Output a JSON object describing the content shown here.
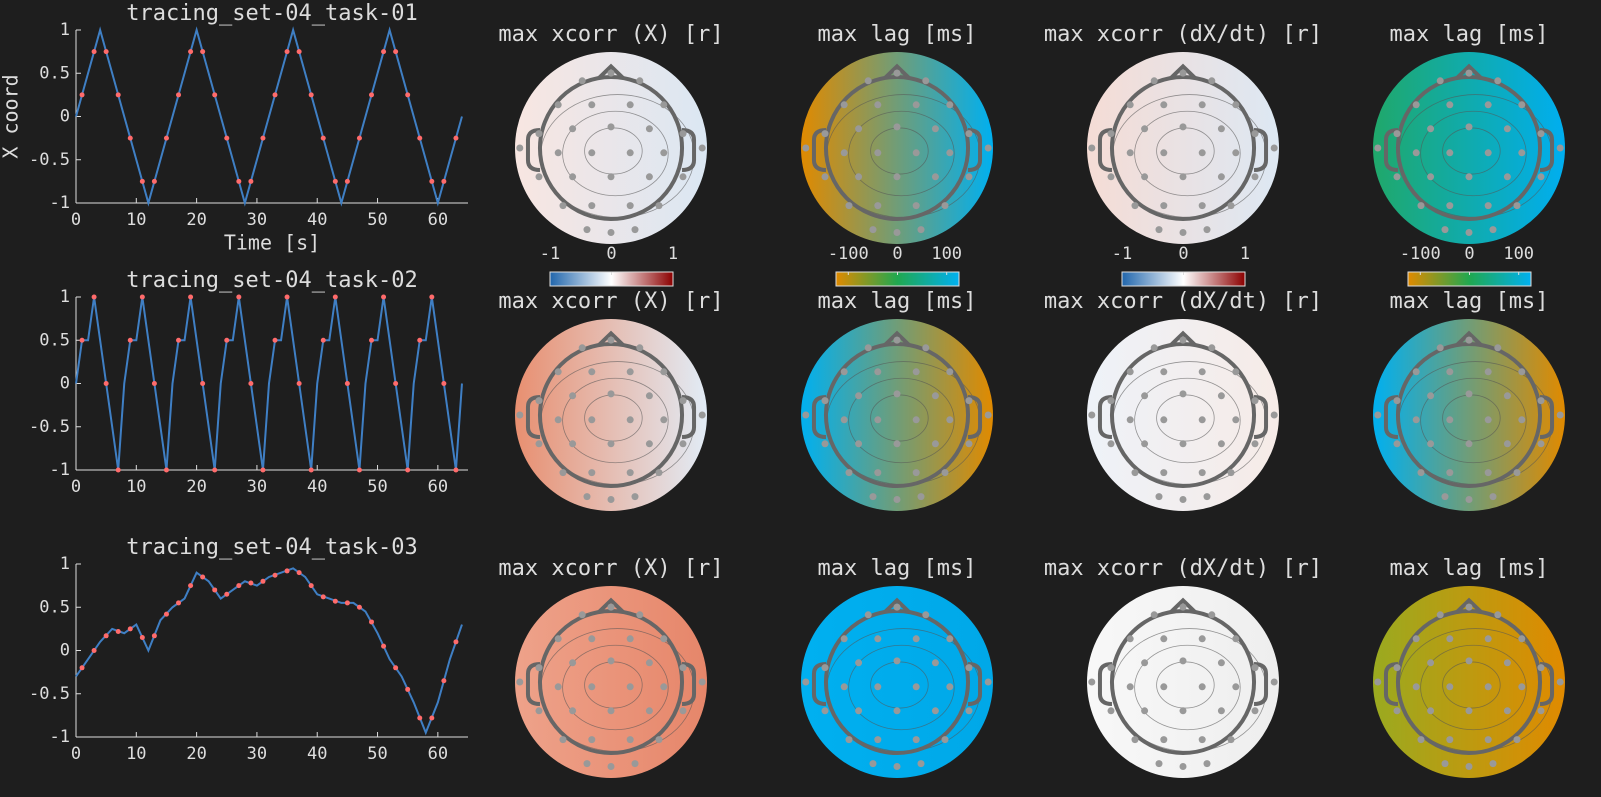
{
  "chart_data": [
    {
      "type": "line",
      "title": "tracing_set-04_task-01",
      "xlabel": "Time [s]",
      "ylabel": "X coord",
      "xlim": [
        0,
        65
      ],
      "xticks": [
        0,
        10,
        20,
        30,
        40,
        50,
        60
      ],
      "ylim": [
        -1,
        1
      ],
      "yticks": [
        -1,
        -0.5,
        0,
        0.5,
        1
      ],
      "series": [
        {
          "mode": "line",
          "color": "#3f7fc4",
          "x": [
            0,
            1,
            2,
            3,
            4,
            5,
            6,
            7,
            8,
            9,
            10,
            11,
            12,
            13,
            14,
            15,
            16,
            17,
            18,
            19,
            20,
            21,
            22,
            23,
            24,
            25,
            26,
            27,
            28,
            29,
            30,
            31,
            32,
            33,
            34,
            35,
            36,
            37,
            38,
            39,
            40,
            41,
            42,
            43,
            44,
            45,
            46,
            47,
            48,
            49,
            50,
            51,
            52,
            53,
            54,
            55,
            56,
            57,
            58,
            59,
            60,
            61,
            62,
            63,
            64
          ],
          "values": [
            0,
            0.25,
            0.5,
            0.75,
            1,
            0.75,
            0.5,
            0.25,
            0,
            -0.25,
            -0.5,
            -0.75,
            -1,
            -0.75,
            -0.5,
            -0.25,
            0,
            0.25,
            0.5,
            0.75,
            1,
            0.75,
            0.5,
            0.25,
            0,
            -0.25,
            -0.5,
            -0.75,
            -1,
            -0.75,
            -0.5,
            -0.25,
            0,
            0.25,
            0.5,
            0.75,
            1,
            0.75,
            0.5,
            0.25,
            0,
            -0.25,
            -0.5,
            -0.75,
            -1,
            -0.75,
            -0.5,
            -0.25,
            0,
            0.25,
            0.5,
            0.75,
            1,
            0.75,
            0.5,
            0.25,
            0,
            -0.25,
            -0.5,
            -0.75,
            -1,
            -0.75,
            -0.5,
            -0.25,
            0
          ]
        },
        {
          "mode": "markers",
          "color": "#ff6b6b",
          "x": [
            1,
            3,
            5,
            7,
            9,
            11,
            13,
            15,
            17,
            19,
            21,
            23,
            25,
            27,
            29,
            31,
            33,
            35,
            37,
            39,
            41,
            43,
            45,
            47,
            49,
            51,
            53,
            55,
            57,
            59,
            61,
            63
          ],
          "values": [
            0.25,
            0.75,
            0.75,
            0.25,
            -0.25,
            -0.75,
            -0.75,
            -0.25,
            0.25,
            0.75,
            0.75,
            0.25,
            -0.25,
            -0.75,
            -0.75,
            -0.25,
            0.25,
            0.75,
            0.75,
            0.25,
            -0.25,
            -0.75,
            -0.75,
            -0.25,
            0.25,
            0.75,
            0.75,
            0.25,
            -0.25,
            -0.75,
            -0.75,
            -0.25
          ]
        }
      ]
    },
    {
      "type": "line",
      "title": "tracing_set-04_task-02",
      "xlim": [
        0,
        65
      ],
      "xticks": [
        0,
        10,
        20,
        30,
        40,
        50,
        60
      ],
      "ylim": [
        -1,
        1
      ],
      "yticks": [
        -1,
        -0.5,
        0,
        0.5,
        1
      ],
      "series": [
        {
          "mode": "line",
          "color": "#3f7fc4",
          "x": [
            0,
            1,
            2,
            3,
            4,
            5,
            6,
            7,
            8,
            9,
            10,
            11,
            12,
            13,
            14,
            15,
            16,
            17,
            18,
            19,
            20,
            21,
            22,
            23,
            24,
            25,
            26,
            27,
            28,
            29,
            30,
            31,
            32,
            33,
            34,
            35,
            36,
            37,
            38,
            39,
            40,
            41,
            42,
            43,
            44,
            45,
            46,
            47,
            48,
            49,
            50,
            51,
            52,
            53,
            54,
            55,
            56,
            57,
            58,
            59,
            60,
            61,
            62,
            63,
            64
          ],
          "values": [
            0,
            0.5,
            0.5,
            1,
            0.5,
            0,
            -0.5,
            -1,
            0,
            0.5,
            0.5,
            1,
            0.5,
            0,
            -0.5,
            -1,
            0,
            0.5,
            0.5,
            1,
            0.5,
            0,
            -0.5,
            -1,
            0,
            0.5,
            0.5,
            1,
            0.5,
            0,
            -0.5,
            -1,
            0,
            0.5,
            0.5,
            1,
            0.5,
            0,
            -0.5,
            -1,
            0,
            0.5,
            0.5,
            1,
            0.5,
            0,
            -0.5,
            -1,
            0,
            0.5,
            0.5,
            1,
            0.5,
            0,
            -0.5,
            -1,
            0,
            0.5,
            0.5,
            1,
            0.5,
            0,
            -0.5,
            -1,
            0
          ]
        },
        {
          "mode": "markers",
          "color": "#ff6b6b",
          "x": [
            1,
            3,
            5,
            7,
            9,
            11,
            13,
            15,
            17,
            19,
            21,
            23,
            25,
            27,
            29,
            31,
            33,
            35,
            37,
            39,
            41,
            43,
            45,
            47,
            49,
            51,
            53,
            55,
            57,
            59,
            61,
            63
          ],
          "values": [
            0.5,
            1,
            0,
            -1,
            0.5,
            1,
            0,
            -1,
            0.5,
            1,
            0,
            -1,
            0.5,
            1,
            0,
            -1,
            0.5,
            1,
            0,
            -1,
            0.5,
            1,
            0,
            -1,
            0.5,
            1,
            0,
            -1,
            0.5,
            1,
            0,
            -1
          ]
        }
      ]
    },
    {
      "type": "line",
      "title": "tracing_set-04_task-03",
      "xlim": [
        0,
        65
      ],
      "xticks": [
        0,
        10,
        20,
        30,
        40,
        50,
        60
      ],
      "ylim": [
        -1,
        1
      ],
      "yticks": [
        -1,
        -0.5,
        0,
        0.5,
        1
      ],
      "series": [
        {
          "mode": "line",
          "color": "#3f7fc4",
          "x": [
            0,
            2,
            4,
            6,
            8,
            10,
            12,
            14,
            16,
            18,
            20,
            22,
            24,
            26,
            28,
            30,
            32,
            34,
            36,
            38,
            40,
            42,
            44,
            46,
            48,
            50,
            52,
            54,
            56,
            58,
            60,
            62,
            64
          ],
          "values": [
            -0.3,
            -0.1,
            0.1,
            0.25,
            0.2,
            0.3,
            0,
            0.35,
            0.5,
            0.6,
            0.9,
            0.8,
            0.6,
            0.7,
            0.8,
            0.75,
            0.85,
            0.9,
            0.95,
            0.85,
            0.65,
            0.6,
            0.55,
            0.55,
            0.45,
            0.2,
            -0.1,
            -0.3,
            -0.6,
            -0.95,
            -0.6,
            -0.1,
            0.3
          ]
        },
        {
          "mode": "markers",
          "color": "#ff6b6b",
          "x": [
            1,
            3,
            5,
            7,
            9,
            11,
            13,
            15,
            17,
            19,
            21,
            23,
            25,
            27,
            29,
            31,
            33,
            35,
            37,
            39,
            41,
            43,
            45,
            47,
            49,
            51,
            53,
            55,
            57,
            59,
            61,
            63
          ],
          "values": [
            -0.2,
            0,
            0.17,
            0.22,
            0.25,
            0.15,
            0.17,
            0.42,
            0.55,
            0.75,
            0.85,
            0.7,
            0.65,
            0.75,
            0.78,
            0.8,
            0.87,
            0.92,
            0.9,
            0.75,
            0.62,
            0.57,
            0.55,
            0.5,
            0.33,
            0.05,
            -0.2,
            -0.45,
            -0.78,
            -0.78,
            -0.35,
            0.1
          ]
        }
      ]
    },
    {
      "type": "topoplot",
      "title": "max xcorr (X) [r]",
      "colors": [
        "#f8e6e1",
        "#dbe7f3"
      ],
      "clim": [
        -1,
        1
      ],
      "cticks": [
        -1,
        0,
        1
      ],
      "cmap": [
        "#2166ac",
        "#ffffff",
        "#8b0000"
      ]
    },
    {
      "type": "topoplot",
      "title": "max lag [ms]",
      "colors": [
        "#e08a00",
        "#00b0f0"
      ],
      "clim": [
        -125,
        125
      ],
      "cticks": [
        -100,
        0,
        100
      ],
      "cmap": [
        "#e08a00",
        "#20a850",
        "#00b0f0"
      ]
    },
    {
      "type": "topoplot",
      "title": "max xcorr (dX/dt) [r]",
      "colors": [
        "#f5dcd5",
        "#dde8f3"
      ],
      "clim": [
        -1,
        1
      ],
      "cticks": [
        -1,
        0,
        1
      ],
      "cmap": [
        "#2166ac",
        "#ffffff",
        "#8b0000"
      ]
    },
    {
      "type": "topoplot",
      "title": "max lag [ms]",
      "colors": [
        "#20a86a",
        "#00aef0"
      ],
      "clim": [
        -125,
        125
      ],
      "cticks": [
        -100,
        0,
        100
      ],
      "cmap": [
        "#e08a00",
        "#20a850",
        "#00b0f0"
      ]
    },
    {
      "type": "topoplot",
      "title": "max xcorr (X) [r]",
      "colors": [
        "#e88f70",
        "#e2ecf6"
      ]
    },
    {
      "type": "topoplot",
      "title": "max lag [ms]",
      "colors": [
        "#00b0f0",
        "#e08a00"
      ]
    },
    {
      "type": "topoplot",
      "title": "max xcorr (dX/dt) [r]",
      "colors": [
        "#eef2f8",
        "#f6ebe7"
      ]
    },
    {
      "type": "topoplot",
      "title": "max lag [ms]",
      "colors": [
        "#00b0f0",
        "#e08a00"
      ]
    },
    {
      "type": "topoplot",
      "title": "max xcorr (X) [r]",
      "colors": [
        "#eea28a",
        "#e6866a"
      ]
    },
    {
      "type": "topoplot",
      "title": "max lag [ms]",
      "colors": [
        "#00b0f0",
        "#00a8e8"
      ]
    },
    {
      "type": "topoplot",
      "title": "max xcorr (dX/dt) [r]",
      "colors": [
        "#f8f8f8",
        "#eeeeee"
      ]
    },
    {
      "type": "topoplot",
      "title": "max lag [ms]",
      "colors": [
        "#9aaa20",
        "#e08a00"
      ]
    }
  ]
}
